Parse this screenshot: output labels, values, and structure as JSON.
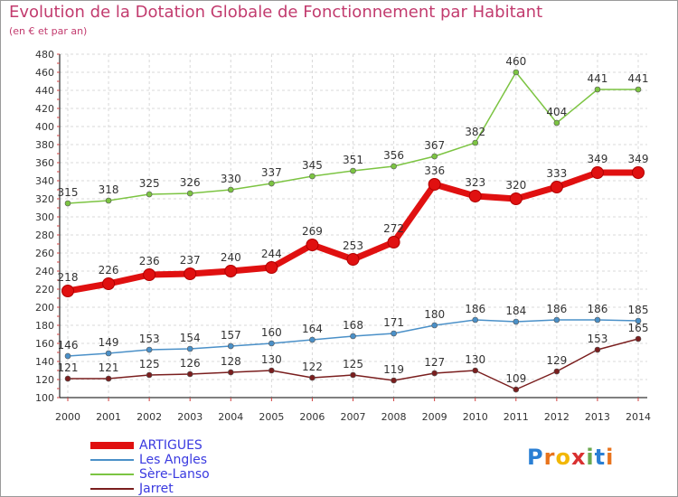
{
  "title": "Evolution de la Dotation Globale de Fonctionnement par Habitant",
  "subtitle": "(en € et par an)",
  "logo": {
    "letters": [
      "P",
      "r",
      "o",
      "x",
      "i",
      "t",
      "i"
    ],
    "colors": [
      "#2a7fd4",
      "#e8731c",
      "#f2b705",
      "#d93030",
      "#6aa84f",
      "#2a7fd4",
      "#e8731c"
    ]
  },
  "chart_data": {
    "type": "line",
    "title": "Evolution de la Dotation Globale de Fonctionnement par Habitant",
    "xlabel": "",
    "ylabel": "(en € et par an)",
    "ylim": [
      100,
      480
    ],
    "yticks": [
      100,
      120,
      140,
      160,
      180,
      200,
      220,
      240,
      260,
      280,
      300,
      320,
      340,
      360,
      380,
      400,
      420,
      440,
      460,
      480
    ],
    "categories": [
      "2000",
      "2001",
      "2002",
      "2003",
      "2004",
      "2005",
      "2006",
      "2007",
      "2008",
      "2009",
      "2010",
      "2011",
      "2012",
      "2013",
      "2014"
    ],
    "grid": true,
    "legend_position": "bottom-left",
    "series": [
      {
        "name": "ARTIGUES",
        "color": "#e01010",
        "thick": true,
        "values": [
          218,
          226,
          236,
          237,
          240,
          244,
          269,
          253,
          272,
          336,
          323,
          320,
          333,
          349,
          349
        ]
      },
      {
        "name": "Les Angles",
        "color": "#4a90c8",
        "thick": false,
        "values": [
          146,
          149,
          153,
          154,
          157,
          160,
          164,
          168,
          171,
          180,
          186,
          184,
          186,
          186,
          185
        ]
      },
      {
        "name": "Sère-Lanso",
        "color": "#7cc442",
        "thick": false,
        "values": [
          315,
          318,
          325,
          326,
          330,
          337,
          345,
          351,
          356,
          367,
          382,
          460,
          404,
          441,
          441
        ]
      },
      {
        "name": "Jarret",
        "color": "#7a1e1e",
        "thick": false,
        "values": [
          121,
          121,
          125,
          126,
          128,
          130,
          122,
          125,
          119,
          127,
          130,
          109,
          129,
          153,
          165
        ]
      }
    ]
  }
}
